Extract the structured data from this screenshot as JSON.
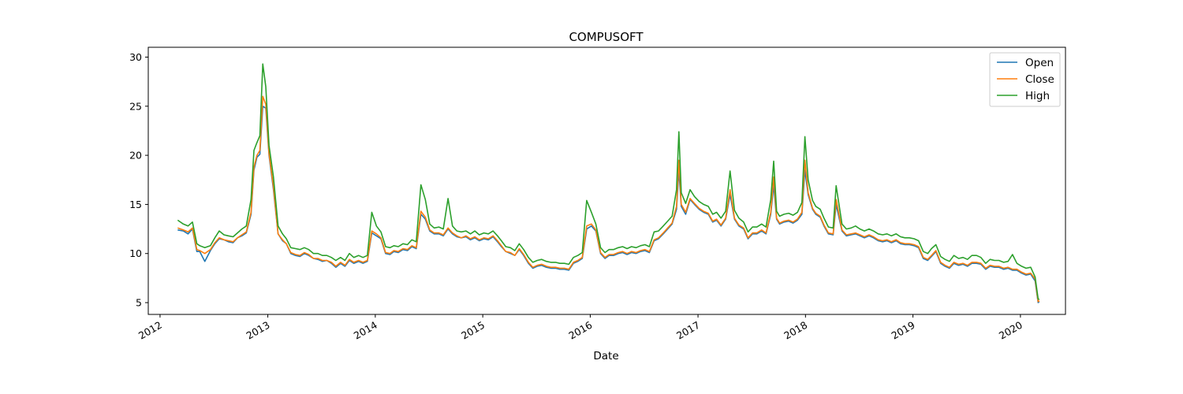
{
  "chart_data": {
    "type": "line",
    "title": "COMPUSOFT",
    "xlabel": "Date",
    "ylabel": "",
    "xlim": [
      "2011-11-22",
      "2020-06-02"
    ],
    "ylim": [
      3.8,
      31.0
    ],
    "x_ticks": [
      {
        "date": "2012-01-01",
        "label": "2012"
      },
      {
        "date": "2013-01-01",
        "label": "2013"
      },
      {
        "date": "2014-01-01",
        "label": "2014"
      },
      {
        "date": "2015-01-01",
        "label": "2015"
      },
      {
        "date": "2016-01-01",
        "label": "2016"
      },
      {
        "date": "2017-01-01",
        "label": "2017"
      },
      {
        "date": "2018-01-01",
        "label": "2018"
      },
      {
        "date": "2019-01-01",
        "label": "2019"
      },
      {
        "date": "2020-01-01",
        "label": "2020"
      }
    ],
    "y_ticks": [
      5,
      10,
      15,
      20,
      25,
      30
    ],
    "grid": false,
    "legend": "top-right",
    "x": [
      "2012-03-01",
      "2012-03-20",
      "2012-04-05",
      "2012-04-20",
      "2012-05-05",
      "2012-05-15",
      "2012-06-01",
      "2012-06-20",
      "2012-07-05",
      "2012-07-20",
      "2012-08-05",
      "2012-08-20",
      "2012-09-05",
      "2012-09-20",
      "2012-10-05",
      "2012-10-20",
      "2012-11-05",
      "2012-11-15",
      "2012-11-25",
      "2012-12-05",
      "2012-12-15",
      "2012-12-25",
      "2013-01-05",
      "2013-01-20",
      "2013-02-05",
      "2013-02-20",
      "2013-03-05",
      "2013-03-20",
      "2013-04-05",
      "2013-04-20",
      "2013-05-05",
      "2013-05-20",
      "2013-06-05",
      "2013-06-20",
      "2013-07-05",
      "2013-07-20",
      "2013-08-05",
      "2013-08-20",
      "2013-09-05",
      "2013-09-20",
      "2013-10-05",
      "2013-10-20",
      "2013-11-05",
      "2013-11-20",
      "2013-12-05",
      "2013-12-20",
      "2014-01-05",
      "2014-01-20",
      "2014-02-05",
      "2014-02-20",
      "2014-03-05",
      "2014-03-20",
      "2014-04-05",
      "2014-04-20",
      "2014-05-05",
      "2014-05-20",
      "2014-06-05",
      "2014-06-20",
      "2014-07-05",
      "2014-07-20",
      "2014-08-05",
      "2014-08-20",
      "2014-09-05",
      "2014-09-20",
      "2014-10-05",
      "2014-10-20",
      "2014-11-05",
      "2014-11-20",
      "2014-12-05",
      "2014-12-20",
      "2015-01-05",
      "2015-01-20",
      "2015-02-05",
      "2015-02-20",
      "2015-03-05",
      "2015-03-20",
      "2015-04-05",
      "2015-04-20",
      "2015-05-05",
      "2015-05-20",
      "2015-06-05",
      "2015-06-20",
      "2015-07-05",
      "2015-07-20",
      "2015-08-05",
      "2015-08-20",
      "2015-09-05",
      "2015-09-20",
      "2015-10-05",
      "2015-10-20",
      "2015-11-05",
      "2015-11-20",
      "2015-12-05",
      "2015-12-20",
      "2016-01-05",
      "2016-01-20",
      "2016-02-05",
      "2016-02-20",
      "2016-03-05",
      "2016-03-20",
      "2016-04-05",
      "2016-04-20",
      "2016-05-05",
      "2016-05-20",
      "2016-06-05",
      "2016-06-20",
      "2016-07-05",
      "2016-07-20",
      "2016-08-05",
      "2016-08-20",
      "2016-09-05",
      "2016-09-20",
      "2016-10-05",
      "2016-10-20",
      "2016-10-28",
      "2016-11-05",
      "2016-11-20",
      "2016-12-05",
      "2016-12-20",
      "2017-01-05",
      "2017-01-20",
      "2017-02-05",
      "2017-02-20",
      "2017-03-05",
      "2017-03-20",
      "2017-04-05",
      "2017-04-20",
      "2017-05-05",
      "2017-05-20",
      "2017-06-05",
      "2017-06-20",
      "2017-07-05",
      "2017-07-20",
      "2017-08-05",
      "2017-08-20",
      "2017-09-05",
      "2017-09-15",
      "2017-09-25",
      "2017-10-05",
      "2017-10-20",
      "2017-11-05",
      "2017-11-20",
      "2017-12-05",
      "2017-12-20",
      "2017-12-30",
      "2018-01-10",
      "2018-01-25",
      "2018-02-05",
      "2018-02-20",
      "2018-03-05",
      "2018-03-20",
      "2018-04-05",
      "2018-04-15",
      "2018-05-05",
      "2018-05-20",
      "2018-06-05",
      "2018-06-20",
      "2018-07-05",
      "2018-07-20",
      "2018-08-05",
      "2018-08-20",
      "2018-09-05",
      "2018-09-20",
      "2018-10-05",
      "2018-10-20",
      "2018-11-05",
      "2018-11-20",
      "2018-12-05",
      "2018-12-20",
      "2019-01-05",
      "2019-01-20",
      "2019-02-05",
      "2019-02-20",
      "2019-03-05",
      "2019-03-20",
      "2019-04-05",
      "2019-04-20",
      "2019-05-05",
      "2019-05-20",
      "2019-06-05",
      "2019-06-20",
      "2019-07-05",
      "2019-07-20",
      "2019-08-05",
      "2019-08-20",
      "2019-09-05",
      "2019-09-20",
      "2019-10-05",
      "2019-10-20",
      "2019-11-05",
      "2019-11-20",
      "2019-12-05",
      "2019-12-20",
      "2020-01-05",
      "2020-01-20",
      "2020-02-05",
      "2020-02-20",
      "2020-03-01",
      "2020-03-05"
    ],
    "series": [
      {
        "name": "Open",
        "color": "#1f77b4",
        "values": [
          12.4,
          12.3,
          12.0,
          12.5,
          10.2,
          10.2,
          9.2,
          10.3,
          11.0,
          11.5,
          11.4,
          11.2,
          11.1,
          11.6,
          11.8,
          12.1,
          14.0,
          18.5,
          19.8,
          20.1,
          25.0,
          24.8,
          20.0,
          16.5,
          12.0,
          11.3,
          11.0,
          10.0,
          9.8,
          9.7,
          10.0,
          9.8,
          9.5,
          9.4,
          9.2,
          9.3,
          9.0,
          8.6,
          9.0,
          8.7,
          9.3,
          9.0,
          9.2,
          9.0,
          9.2,
          12.1,
          11.8,
          11.5,
          10.0,
          9.9,
          10.2,
          10.1,
          10.4,
          10.3,
          10.7,
          10.5,
          14.0,
          13.5,
          12.3,
          12.0,
          12.0,
          11.8,
          12.5,
          12.0,
          11.7,
          11.6,
          11.7,
          11.4,
          11.6,
          11.3,
          11.5,
          11.4,
          11.7,
          11.2,
          10.7,
          10.2,
          10.0,
          9.8,
          10.4,
          9.8,
          9.0,
          8.5,
          8.7,
          8.8,
          8.6,
          8.5,
          8.5,
          8.4,
          8.4,
          8.3,
          9.0,
          9.2,
          9.5,
          12.5,
          12.8,
          12.3,
          10.0,
          9.5,
          9.8,
          9.8,
          10.0,
          10.1,
          9.9,
          10.1,
          10.0,
          10.2,
          10.3,
          10.1,
          11.3,
          11.5,
          12.0,
          12.5,
          13.0,
          14.5,
          18.5,
          14.8,
          14.0,
          15.5,
          15.0,
          14.5,
          14.2,
          14.0,
          13.2,
          13.4,
          12.8,
          13.5,
          16.0,
          13.5,
          12.8,
          12.5,
          11.5,
          12.0,
          12.0,
          12.3,
          12.0,
          14.0,
          17.0,
          13.5,
          13.0,
          13.2,
          13.3,
          13.1,
          13.4,
          14.0,
          18.5,
          16.0,
          14.5,
          14.0,
          13.7,
          12.8,
          12.0,
          11.9,
          15.0,
          12.3,
          11.8,
          11.9,
          12.0,
          11.8,
          11.6,
          11.8,
          11.6,
          11.3,
          11.2,
          11.3,
          11.1,
          11.3,
          11.0,
          10.9,
          10.9,
          10.8,
          10.6,
          9.5,
          9.3,
          9.7,
          10.2,
          9.0,
          8.7,
          8.5,
          9.0,
          8.8,
          8.9,
          8.7,
          9.0,
          9.0,
          8.9,
          8.4,
          8.7,
          8.6,
          8.6,
          8.4,
          8.5,
          8.3,
          8.3,
          8.0,
          7.8,
          7.9,
          7.2,
          5.0,
          5.1
        ]
      },
      {
        "name": "Close",
        "color": "#ff7f0e",
        "values": [
          12.6,
          12.4,
          12.2,
          12.6,
          10.4,
          10.3,
          10.0,
          10.4,
          11.1,
          11.6,
          11.4,
          11.3,
          11.2,
          11.6,
          11.9,
          12.2,
          14.2,
          18.8,
          20.0,
          20.5,
          26.0,
          25.2,
          20.2,
          16.8,
          12.0,
          11.4,
          11.0,
          10.1,
          9.9,
          9.8,
          10.1,
          9.9,
          9.5,
          9.5,
          9.3,
          9.3,
          9.1,
          8.7,
          9.1,
          8.8,
          9.4,
          9.1,
          9.3,
          9.1,
          9.3,
          12.3,
          12.0,
          11.6,
          10.1,
          10.0,
          10.3,
          10.2,
          10.5,
          10.4,
          10.8,
          10.6,
          14.3,
          13.7,
          12.4,
          12.1,
          12.1,
          11.9,
          12.6,
          12.1,
          11.8,
          11.6,
          11.8,
          11.5,
          11.7,
          11.4,
          11.6,
          11.5,
          11.8,
          11.3,
          10.8,
          10.2,
          10.1,
          9.8,
          10.5,
          9.9,
          9.1,
          8.6,
          8.8,
          8.9,
          8.7,
          8.6,
          8.6,
          8.5,
          8.5,
          8.4,
          9.1,
          9.3,
          9.6,
          12.8,
          13.0,
          12.4,
          10.1,
          9.6,
          9.9,
          9.9,
          10.1,
          10.2,
          10.0,
          10.2,
          10.1,
          10.3,
          10.4,
          10.2,
          11.4,
          11.6,
          12.1,
          12.6,
          13.1,
          14.8,
          19.5,
          15.0,
          14.2,
          15.6,
          15.1,
          14.6,
          14.3,
          14.1,
          13.3,
          13.5,
          12.9,
          13.6,
          16.5,
          13.6,
          12.9,
          12.6,
          11.6,
          12.1,
          12.1,
          12.4,
          12.1,
          14.2,
          17.8,
          13.6,
          13.1,
          13.3,
          13.4,
          13.2,
          13.5,
          14.2,
          19.5,
          16.2,
          14.6,
          14.1,
          13.8,
          12.9,
          12.1,
          12.0,
          15.5,
          12.4,
          11.9,
          12.0,
          12.1,
          11.9,
          11.7,
          11.9,
          11.7,
          11.4,
          11.3,
          11.4,
          11.2,
          11.4,
          11.1,
          11.0,
          11.0,
          10.9,
          10.7,
          9.6,
          9.4,
          9.8,
          10.3,
          9.1,
          8.8,
          8.6,
          9.1,
          8.9,
          9.0,
          8.8,
          9.1,
          9.1,
          9.0,
          8.5,
          8.8,
          8.7,
          8.7,
          8.5,
          8.6,
          8.4,
          8.4,
          8.1,
          7.9,
          8.0,
          7.4,
          5.1,
          5.2
        ]
      },
      {
        "name": "High",
        "color": "#2ca02c",
        "values": [
          13.4,
          13.0,
          12.8,
          13.2,
          11.0,
          10.8,
          10.6,
          10.8,
          11.6,
          12.3,
          11.9,
          11.8,
          11.7,
          12.1,
          12.5,
          12.8,
          15.5,
          20.5,
          21.3,
          22.0,
          29.3,
          27.0,
          21.0,
          17.8,
          12.8,
          12.0,
          11.5,
          10.6,
          10.5,
          10.4,
          10.6,
          10.4,
          10.0,
          10.0,
          9.8,
          9.8,
          9.6,
          9.3,
          9.6,
          9.3,
          10.0,
          9.6,
          9.8,
          9.6,
          9.8,
          14.2,
          12.8,
          12.2,
          10.7,
          10.6,
          10.8,
          10.7,
          11.0,
          10.9,
          11.4,
          11.2,
          17.0,
          15.5,
          13.0,
          12.6,
          12.7,
          12.5,
          15.6,
          12.8,
          12.3,
          12.2,
          12.3,
          12.0,
          12.3,
          11.9,
          12.1,
          12.0,
          12.3,
          11.8,
          11.3,
          10.7,
          10.6,
          10.3,
          11.0,
          10.4,
          9.6,
          9.1,
          9.3,
          9.4,
          9.2,
          9.1,
          9.1,
          9.0,
          9.0,
          8.9,
          9.6,
          9.8,
          10.1,
          15.4,
          14.2,
          13.0,
          10.6,
          10.1,
          10.4,
          10.4,
          10.6,
          10.7,
          10.5,
          10.7,
          10.6,
          10.8,
          10.9,
          10.7,
          12.2,
          12.3,
          12.8,
          13.3,
          13.8,
          16.5,
          22.4,
          16.2,
          15.1,
          16.5,
          15.8,
          15.3,
          15.0,
          14.8,
          14.0,
          14.2,
          13.6,
          14.3,
          18.4,
          14.4,
          13.6,
          13.2,
          12.2,
          12.7,
          12.7,
          13.0,
          12.7,
          15.5,
          19.4,
          14.3,
          13.8,
          14.0,
          14.1,
          13.9,
          14.2,
          15.2,
          21.9,
          17.5,
          15.4,
          14.8,
          14.5,
          13.6,
          12.7,
          12.6,
          16.9,
          13.0,
          12.5,
          12.6,
          12.8,
          12.5,
          12.3,
          12.5,
          12.3,
          12.0,
          11.9,
          12.0,
          11.8,
          12.0,
          11.7,
          11.6,
          11.6,
          11.5,
          11.3,
          10.2,
          10.0,
          10.5,
          10.9,
          9.7,
          9.4,
          9.2,
          9.8,
          9.5,
          9.6,
          9.4,
          9.8,
          9.8,
          9.6,
          9.0,
          9.4,
          9.3,
          9.3,
          9.1,
          9.2,
          9.9,
          9.0,
          8.7,
          8.5,
          8.6,
          7.6,
          5.4,
          5.3
        ]
      }
    ]
  }
}
